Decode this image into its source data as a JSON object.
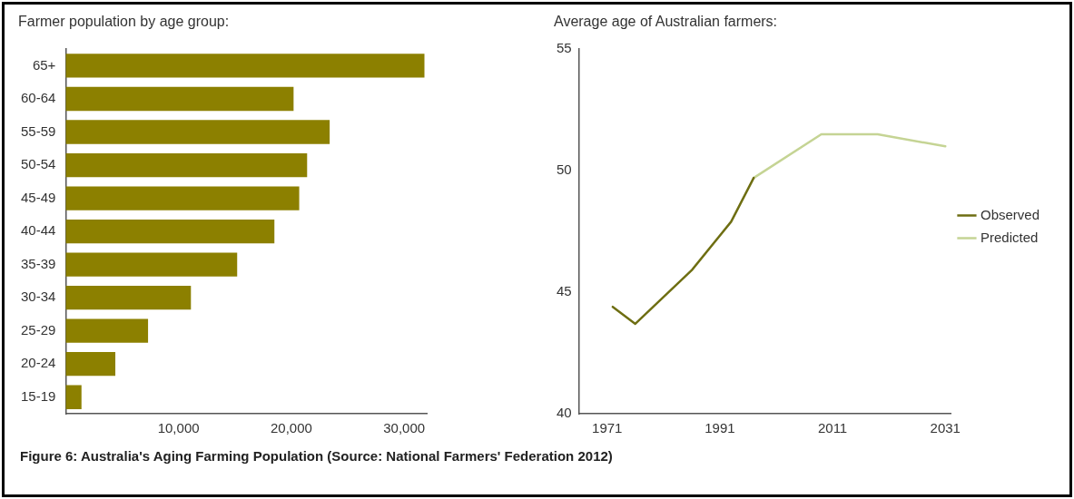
{
  "chart_data": [
    {
      "type": "bar",
      "orientation": "horizontal",
      "title": "Farmer population by age group:",
      "categories": [
        "65+",
        "60-64",
        "55-59",
        "50-54",
        "45-49",
        "40-44",
        "35-39",
        "30-34",
        "25-29",
        "20-24",
        "15-19"
      ],
      "values": [
        31800,
        20200,
        23400,
        21400,
        20700,
        18500,
        15200,
        11100,
        7300,
        4400,
        1400
      ],
      "color": "#8c8000",
      "xlim": [
        0,
        32000
      ],
      "xticks": [
        {
          "value": 10000,
          "label": "10,000"
        },
        {
          "value": 20000,
          "label": "20,000"
        },
        {
          "value": 30000,
          "label": "30,000"
        }
      ],
      "grid": false,
      "legend": false,
      "annotations": [
        "Figure 6: Australia's Aging Farming Population (Source: National Farmers' Federation 2012)"
      ]
    },
    {
      "type": "line",
      "title": "Average age of Australian farmers:",
      "xlim": [
        1966,
        2032
      ],
      "xticks": [
        1971,
        1991,
        2011,
        2031
      ],
      "ylim": [
        40,
        55
      ],
      "yticks": [
        40,
        45,
        50,
        55
      ],
      "grid": false,
      "legend": "right",
      "marker": "none",
      "series": [
        {
          "name": "Observed",
          "color": "#6e6e12",
          "x": [
            1972,
            1976,
            1986,
            1993,
            1997
          ],
          "values": [
            44.4,
            43.7,
            45.9,
            47.9,
            49.7
          ]
        },
        {
          "name": "Predicted",
          "color": "#c5d494",
          "x": [
            1997,
            2009,
            2019,
            2031
          ],
          "values": [
            49.7,
            51.5,
            51.5,
            51.0
          ]
        }
      ]
    }
  ]
}
